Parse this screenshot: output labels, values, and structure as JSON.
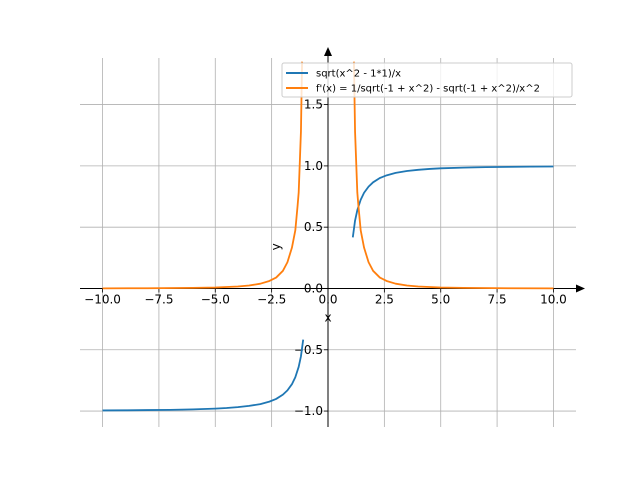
{
  "chart_data": {
    "type": "line",
    "xlabel": "x",
    "ylabel": "y",
    "xlim": [
      -11,
      11
    ],
    "ylim": [
      -1.13,
      1.88
    ],
    "grid": true,
    "legend_placement": "top-right",
    "x_ticks": [
      -10.0,
      -7.5,
      -5.0,
      -2.5,
      0.0,
      2.5,
      5.0,
      7.5,
      10.0
    ],
    "x_tick_labels": [
      "−10.0",
      "−7.5",
      "−5.0",
      "−2.5",
      "0.0",
      "2.5",
      "5.0",
      "7.5",
      "10.0"
    ],
    "y_ticks": [
      -1.0,
      -0.5,
      0.0,
      0.5,
      1.0,
      1.5
    ],
    "y_tick_labels": [
      "−1.0",
      "−0.5",
      "0.0",
      "0.5",
      "1.0",
      "1.5"
    ],
    "series": [
      {
        "name": "sqrt(x^2 - 1*1)/x",
        "color": "#1f77b4",
        "segments": [
          [
            [
              -10,
              -0.995
            ],
            [
              -9,
              -0.994
            ],
            [
              -8,
              -0.992
            ],
            [
              -7,
              -0.99
            ],
            [
              -6,
              -0.986
            ],
            [
              -5,
              -0.98
            ],
            [
              -4.5,
              -0.975
            ],
            [
              -4,
              -0.968
            ],
            [
              -3.5,
              -0.958
            ],
            [
              -3,
              -0.943
            ],
            [
              -2.6,
              -0.923
            ],
            [
              -2.3,
              -0.901
            ],
            [
              -2,
              -0.866
            ],
            [
              -1.8,
              -0.831
            ],
            [
              -1.6,
              -0.781
            ],
            [
              -1.45,
              -0.724
            ],
            [
              -1.3,
              -0.639
            ],
            [
              -1.2,
              -0.553
            ],
            [
              -1.1,
              -0.417
            ]
          ],
          [
            [
              1.1,
              0.417
            ],
            [
              1.2,
              0.553
            ],
            [
              1.3,
              0.639
            ],
            [
              1.45,
              0.724
            ],
            [
              1.6,
              0.781
            ],
            [
              1.8,
              0.831
            ],
            [
              2,
              0.866
            ],
            [
              2.3,
              0.901
            ],
            [
              2.6,
              0.923
            ],
            [
              3,
              0.943
            ],
            [
              3.5,
              0.958
            ],
            [
              4,
              0.968
            ],
            [
              4.5,
              0.975
            ],
            [
              5,
              0.98
            ],
            [
              6,
              0.986
            ],
            [
              7,
              0.99
            ],
            [
              8,
              0.992
            ],
            [
              9,
              0.994
            ],
            [
              10,
              0.995
            ]
          ]
        ]
      },
      {
        "name": "f'(x) = 1/sqrt(-1 + x^2) - sqrt(-1 + x^2)/x^2",
        "color": "#ff7f0e",
        "segments": [
          [
            [
              -10,
              0.001
            ],
            [
              -8,
              0.002
            ],
            [
              -6,
              0.005
            ],
            [
              -5,
              0.008
            ],
            [
              -4,
              0.016
            ],
            [
              -3.5,
              0.024
            ],
            [
              -3,
              0.039
            ],
            [
              -2.6,
              0.061
            ],
            [
              -2.3,
              0.089
            ],
            [
              -2,
              0.144
            ],
            [
              -1.8,
              0.214
            ],
            [
              -1.6,
              0.333
            ],
            [
              -1.45,
              0.474
            ],
            [
              -1.35,
              0.672
            ],
            [
              -1.3,
              0.783
            ],
            [
              -1.2,
              1.281
            ],
            [
              -1.15,
              1.85
            ]
          ],
          [
            [
              1.15,
              1.85
            ],
            [
              1.2,
              1.281
            ],
            [
              1.3,
              0.783
            ],
            [
              1.35,
              0.672
            ],
            [
              1.45,
              0.474
            ],
            [
              1.6,
              0.333
            ],
            [
              1.8,
              0.214
            ],
            [
              2,
              0.144
            ],
            [
              2.3,
              0.089
            ],
            [
              2.6,
              0.061
            ],
            [
              3,
              0.039
            ],
            [
              3.5,
              0.024
            ],
            [
              4,
              0.016
            ],
            [
              5,
              0.008
            ],
            [
              6,
              0.005
            ],
            [
              8,
              0.002
            ],
            [
              10,
              0.001
            ]
          ]
        ]
      }
    ]
  }
}
